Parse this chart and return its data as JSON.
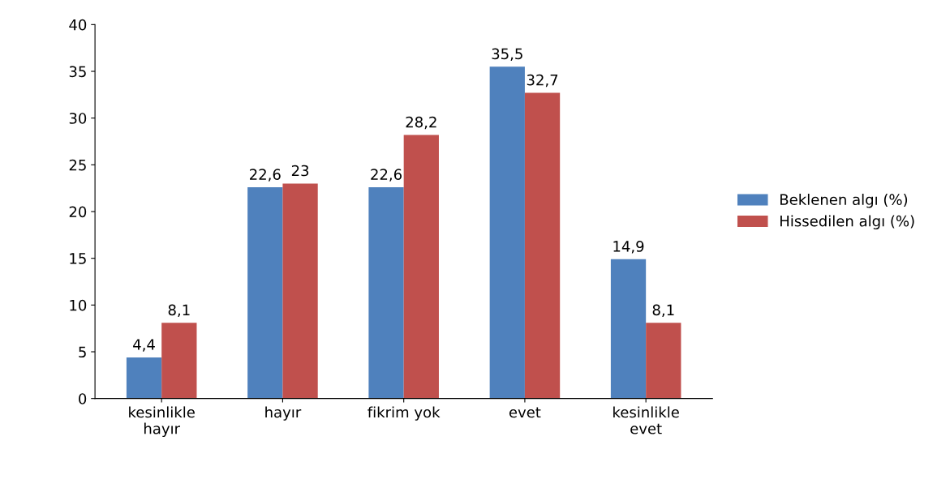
{
  "chart_data": {
    "type": "bar",
    "categories": [
      "kesinlikle\nhayır",
      "hayır",
      "fikrim yok",
      "evet",
      "kesinlikle\nevet"
    ],
    "series": [
      {
        "name": "Beklenen algı (%)",
        "color": "#4f81bd",
        "values": [
          4.4,
          22.6,
          22.6,
          35.5,
          14.9
        ],
        "value_labels": [
          "4,4",
          "22,6",
          "22,6",
          "35,5",
          "14,9"
        ]
      },
      {
        "name": "Hissedilen algı (%)",
        "color": "#c0504d",
        "values": [
          8.1,
          23,
          28.2,
          32.7,
          8.1
        ],
        "value_labels": [
          "8,1",
          "23",
          "28,2",
          "32,7",
          "8,1"
        ]
      }
    ],
    "ylim": [
      0,
      40
    ],
    "yticks": [
      0,
      5,
      10,
      15,
      20,
      25,
      30,
      35,
      40
    ],
    "grid": false,
    "legend": "right"
  }
}
